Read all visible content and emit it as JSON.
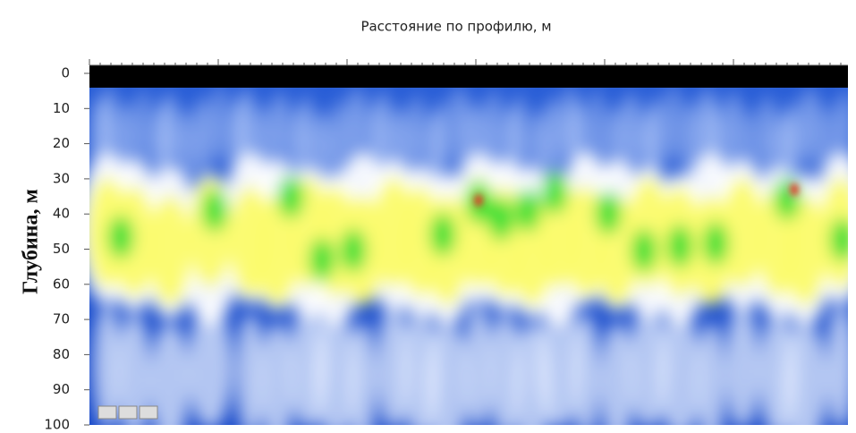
{
  "chart_data": {
    "type": "heatmap",
    "title": "Расстояние по профилю, м",
    "y_label": "Глубина, м",
    "ylim": [
      0,
      100
    ],
    "yticks": [
      0,
      10,
      20,
      30,
      40,
      50,
      60,
      70,
      80,
      90,
      100
    ]
  }
}
